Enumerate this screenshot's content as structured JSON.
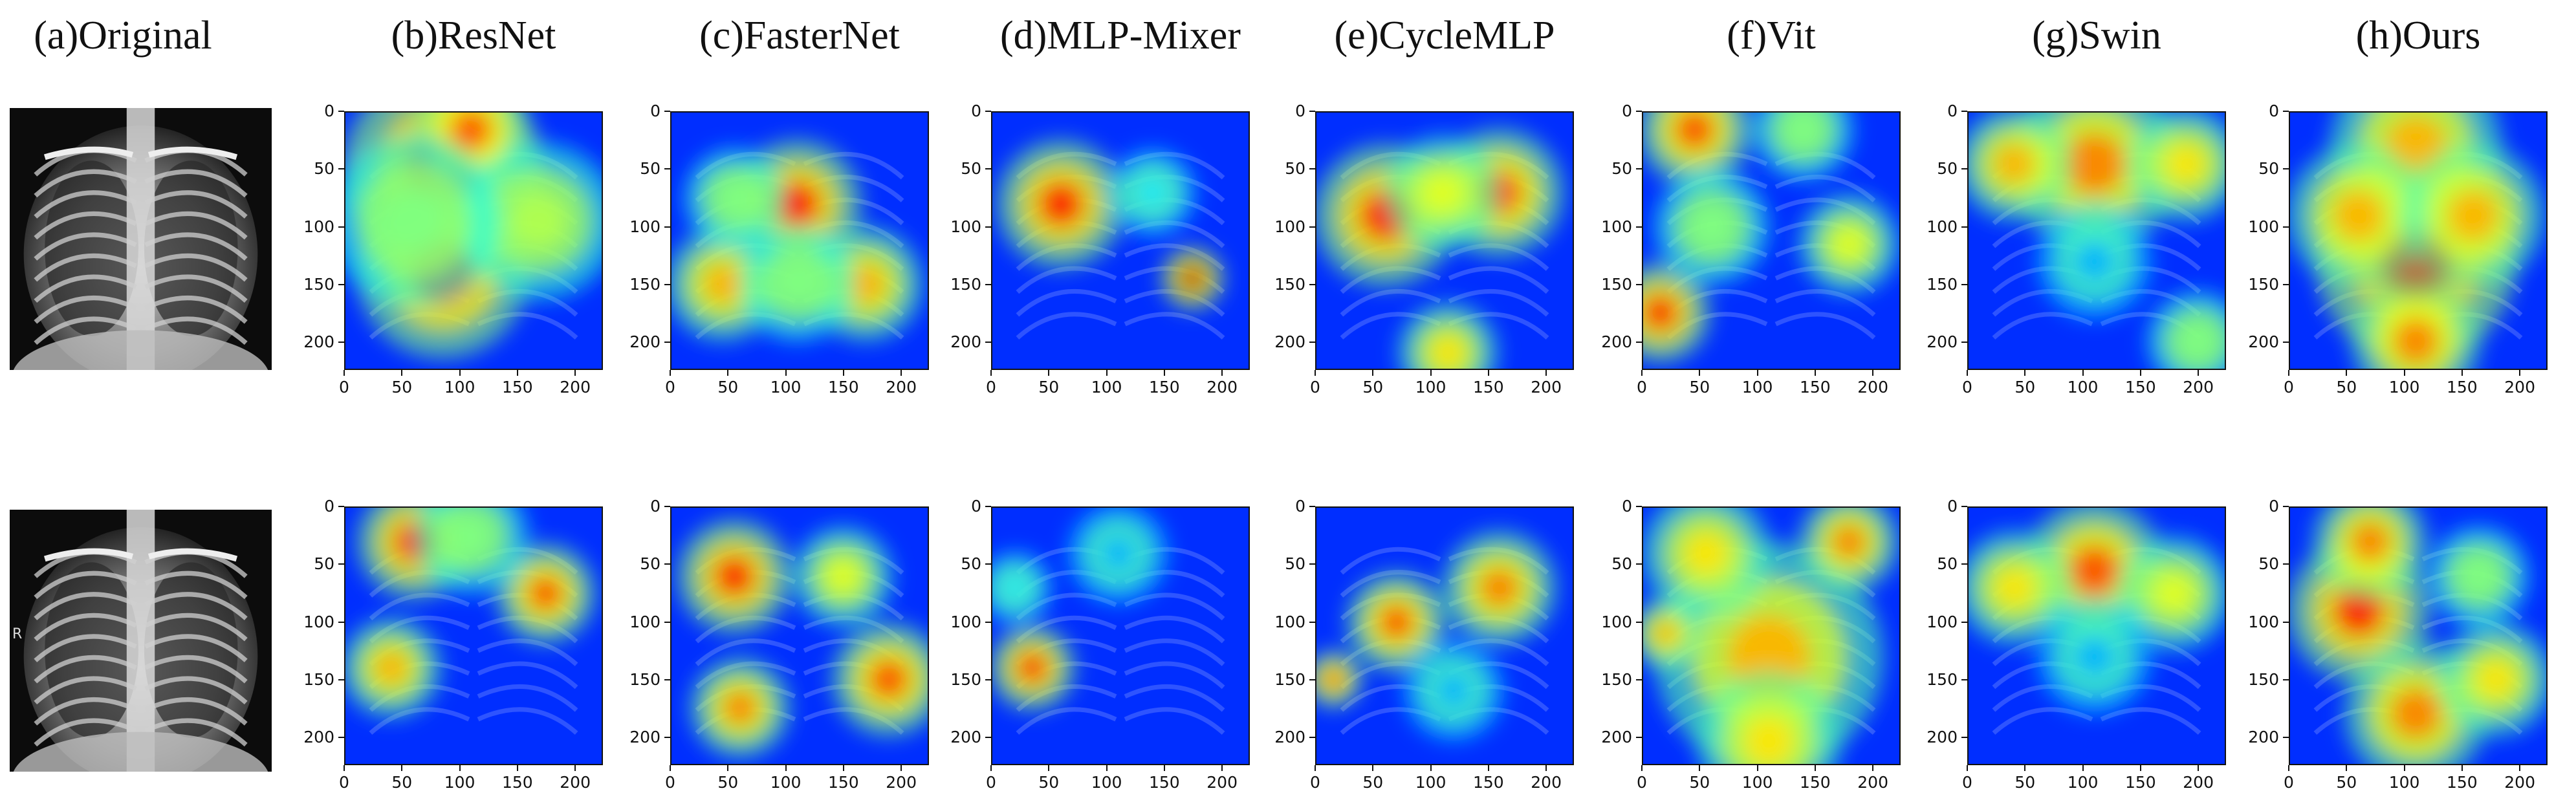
{
  "columns": [
    {
      "id": "original",
      "title": "(a)Original"
    },
    {
      "id": "resnet",
      "title": "(b)ResNet"
    },
    {
      "id": "fasternet",
      "title": "(c)FasterNet"
    },
    {
      "id": "mlpmixer",
      "title": "(d)MLP-Mixer"
    },
    {
      "id": "cyclemlp",
      "title": "(e)CycleMLP"
    },
    {
      "id": "vit",
      "title": "(f)Vit"
    },
    {
      "id": "swin",
      "title": "(g)Swin"
    },
    {
      "id": "ours",
      "title": "(h)Ours"
    }
  ],
  "axis": {
    "y_ticks": [
      "0",
      "50",
      "100",
      "150",
      "200"
    ],
    "x_ticks": [
      "0",
      "50",
      "100",
      "150",
      "200"
    ],
    "range": [
      0,
      224
    ]
  },
  "xray_side_marker": "R",
  "colormap": "jet",
  "heatmaps": {
    "row1": {
      "resnet": [
        [
          85,
          50,
          0.9,
          70
        ],
        [
          85,
          140,
          0.85,
          60
        ],
        [
          110,
          15,
          0.8,
          40
        ],
        [
          170,
          95,
          0.55,
          55
        ],
        [
          60,
          95,
          0.5,
          60
        ]
      ],
      "fasternet": [
        [
          110,
          80,
          0.85,
          45
        ],
        [
          45,
          150,
          0.7,
          40
        ],
        [
          170,
          150,
          0.7,
          40
        ],
        [
          110,
          150,
          0.5,
          40
        ],
        [
          55,
          75,
          0.5,
          35
        ]
      ],
      "mlpmixer": [
        [
          60,
          80,
          0.85,
          45
        ],
        [
          175,
          145,
          0.95,
          22
        ],
        [
          140,
          70,
          0.35,
          30
        ]
      ],
      "cyclemlp": [
        [
          60,
          90,
          0.85,
          50
        ],
        [
          160,
          70,
          0.8,
          45
        ],
        [
          110,
          70,
          0.6,
          40
        ],
        [
          115,
          210,
          0.65,
          35
        ]
      ],
      "vit": [
        [
          45,
          15,
          0.8,
          40
        ],
        [
          15,
          175,
          0.85,
          35
        ],
        [
          180,
          115,
          0.6,
          35
        ],
        [
          60,
          100,
          0.5,
          40
        ],
        [
          140,
          15,
          0.5,
          35
        ]
      ],
      "swin": [
        [
          110,
          45,
          0.75,
          60
        ],
        [
          40,
          45,
          0.7,
          40
        ],
        [
          190,
          45,
          0.65,
          40
        ],
        [
          200,
          200,
          0.5,
          35
        ],
        [
          110,
          130,
          0.3,
          40
        ]
      ],
      "ours": [
        [
          110,
          130,
          0.92,
          70
        ],
        [
          110,
          30,
          0.7,
          60
        ],
        [
          110,
          200,
          0.75,
          45
        ],
        [
          60,
          90,
          0.7,
          50
        ],
        [
          160,
          90,
          0.7,
          50
        ]
      ]
    },
    "row2": {
      "resnet": [
        [
          60,
          30,
          0.85,
          40
        ],
        [
          40,
          140,
          0.7,
          35
        ],
        [
          175,
          75,
          0.8,
          35
        ],
        [
          110,
          25,
          0.5,
          40
        ]
      ],
      "fasternet": [
        [
          55,
          60,
          0.85,
          40
        ],
        [
          190,
          150,
          0.8,
          40
        ],
        [
          60,
          175,
          0.75,
          35
        ],
        [
          150,
          60,
          0.6,
          35
        ]
      ],
      "mlpmixer": [
        [
          35,
          140,
          0.85,
          30
        ],
        [
          20,
          70,
          0.35,
          25
        ],
        [
          110,
          40,
          0.3,
          35
        ]
      ],
      "cyclemlp": [
        [
          70,
          100,
          0.8,
          35
        ],
        [
          160,
          70,
          0.75,
          40
        ],
        [
          15,
          150,
          0.8,
          20
        ],
        [
          120,
          160,
          0.3,
          35
        ]
      ],
      "vit": [
        [
          110,
          130,
          0.7,
          80
        ],
        [
          55,
          40,
          0.65,
          45
        ],
        [
          180,
          30,
          0.75,
          35
        ],
        [
          20,
          110,
          0.7,
          25
        ],
        [
          110,
          205,
          0.65,
          50
        ]
      ],
      "swin": [
        [
          110,
          55,
          0.8,
          50
        ],
        [
          40,
          70,
          0.65,
          40
        ],
        [
          180,
          75,
          0.6,
          40
        ],
        [
          110,
          130,
          0.3,
          40
        ]
      ],
      "ours": [
        [
          60,
          90,
          0.85,
          50
        ],
        [
          110,
          180,
          0.75,
          50
        ],
        [
          70,
          30,
          0.75,
          40
        ],
        [
          180,
          150,
          0.65,
          40
        ],
        [
          165,
          60,
          0.5,
          35
        ]
      ]
    }
  }
}
